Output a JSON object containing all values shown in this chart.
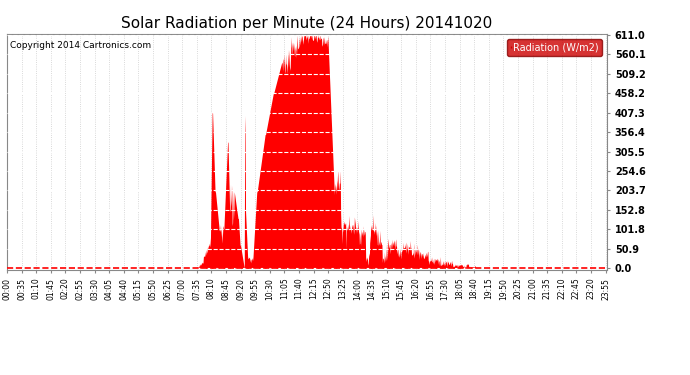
{
  "title": "Solar Radiation per Minute (24 Hours) 20141020",
  "copyright": "Copyright 2014 Cartronics.com",
  "fill_color": "#FF0000",
  "background_color": "#FFFFFF",
  "plot_bg_color": "#FFFFFF",
  "grid_color": "#CCCCCC",
  "ylim": [
    0.0,
    611.0
  ],
  "yticks": [
    0.0,
    50.9,
    101.8,
    152.8,
    203.7,
    254.6,
    305.5,
    356.4,
    407.3,
    458.2,
    509.2,
    560.1,
    611.0
  ],
  "legend_label": "Radiation (W/m2)",
  "legend_bg": "#CC0000",
  "legend_text_color": "#FFFFFF",
  "tick_interval_minutes": 35
}
